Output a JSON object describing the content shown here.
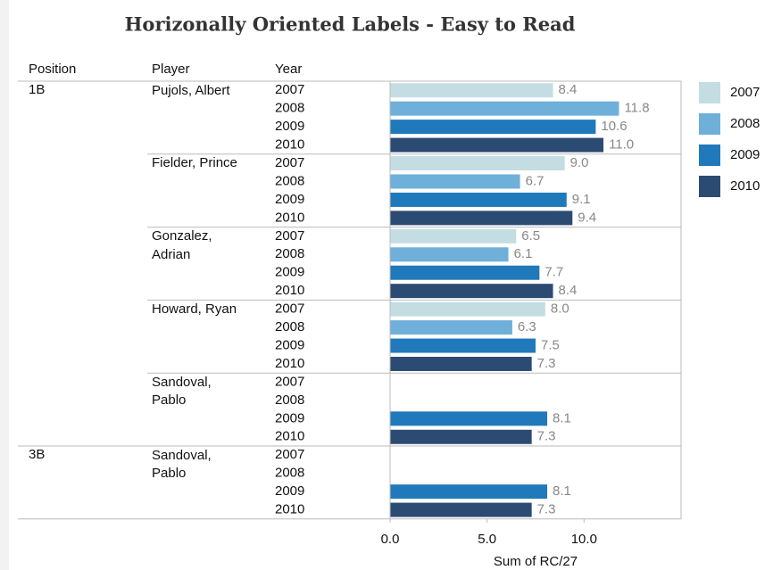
{
  "chart_data": {
    "type": "bar",
    "orientation": "horizontal",
    "title": "Horizonally Oriented Labels - Easy to Read",
    "column_headers": [
      "Position",
      "Player",
      "Year"
    ],
    "legend_position": "right",
    "legend": [
      {
        "name": "2007",
        "color": "#c3dde3"
      },
      {
        "name": "2008",
        "color": "#6eb0d9"
      },
      {
        "name": "2009",
        "color": "#2079ba"
      },
      {
        "name": "2010",
        "color": "#2c4b73"
      }
    ],
    "groups": [
      {
        "position": "1B",
        "players": [
          {
            "player": "Pujols, Albert",
            "years": [
              2007,
              2008,
              2009,
              2010
            ],
            "values": [
              8.4,
              11.8,
              10.6,
              11.0
            ],
            "value_labels": [
              "8.4",
              "11.8",
              "10.6",
              "11.0"
            ]
          },
          {
            "player": "Fielder, Prince",
            "years": [
              2007,
              2008,
              2009,
              2010
            ],
            "values": [
              9.0,
              6.7,
              9.1,
              9.4
            ],
            "value_labels": [
              "9.0",
              "6.7",
              "9.1",
              "9.4"
            ]
          },
          {
            "player": "Gonzalez, Adrian",
            "years": [
              2007,
              2008,
              2009,
              2010
            ],
            "values": [
              6.5,
              6.1,
              7.7,
              8.4
            ]
          },
          {
            "player": "Howard, Ryan",
            "years": [
              2007,
              2008,
              2009,
              2010
            ],
            "values": [
              8.0,
              6.3,
              7.5,
              7.3
            ],
            "value_labels": [
              "8.0",
              "6.3",
              "7.5",
              "7.3"
            ]
          },
          {
            "player": "Sandoval, Pablo",
            "years": [
              2007,
              2008,
              2009,
              2010
            ],
            "values": [
              null,
              null,
              8.1,
              7.3
            ]
          }
        ]
      },
      {
        "position": "3B",
        "players": [
          {
            "player": "Sandoval, Pablo",
            "years": [
              2007,
              2008,
              2009,
              2010
            ],
            "values": [
              null,
              null,
              8.1,
              7.3
            ]
          }
        ]
      }
    ],
    "xlabel": "Sum of RC/27",
    "xlim": [
      0,
      15
    ],
    "xticks": [
      {
        "value": 0,
        "label": "0.0"
      },
      {
        "value": 5,
        "label": "5.0"
      },
      {
        "value": 10,
        "label": "10.0"
      }
    ]
  }
}
